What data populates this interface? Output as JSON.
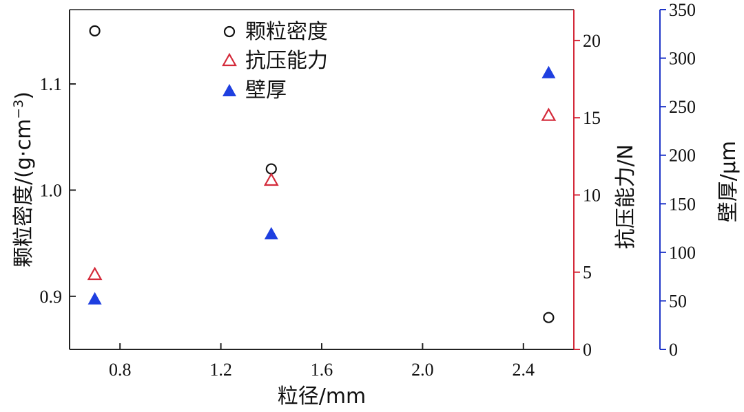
{
  "chart_data": {
    "type": "scatter",
    "xlabel": "粒径/mm",
    "xlim": [
      0.6,
      2.6
    ],
    "x_ticks": [
      0.8,
      1.2,
      1.6,
      2.0,
      2.4
    ],
    "x_tick_labels": [
      "0.8",
      "1.2",
      "1.6",
      "2.0",
      "2.4"
    ],
    "axes": {
      "left": {
        "label_main": "颗粒密度/(g·cm",
        "label_sup": "−3",
        "label_close": ")",
        "ylim": [
          0.85,
          1.17
        ],
        "ticks": [
          0.9,
          1.0,
          1.1
        ],
        "tick_labels": [
          "0.9",
          "1.0",
          "1.1"
        ],
        "color": "#000000"
      },
      "right1": {
        "label": "抗压能力/N",
        "ylim": [
          0,
          22
        ],
        "ticks": [
          0,
          5,
          10,
          15,
          20
        ],
        "tick_labels": [
          "0",
          "5",
          "10",
          "15",
          "20"
        ],
        "color": "#d42a3a"
      },
      "right2": {
        "label": "壁厚/μm",
        "ylim": [
          0,
          350
        ],
        "ticks": [
          0,
          50,
          100,
          150,
          200,
          250,
          300,
          350
        ],
        "tick_labels": [
          "0",
          "50",
          "100",
          "150",
          "200",
          "250",
          "300",
          "350"
        ],
        "color": "#1f35c8"
      }
    },
    "series": [
      {
        "name": "颗粒密度",
        "axis": "left",
        "marker": "circle-open",
        "color": "#111111",
        "x": [
          0.7,
          1.4,
          2.5
        ],
        "y": [
          1.15,
          1.02,
          0.88
        ]
      },
      {
        "name": "抗压能力",
        "axis": "right1",
        "marker": "triangle-open",
        "color": "#d42a3a",
        "x": [
          0.7,
          1.4,
          2.5
        ],
        "y": [
          4.9,
          11.0,
          15.2
        ]
      },
      {
        "name": "壁厚",
        "axis": "right2",
        "marker": "triangle-filled",
        "color": "#1e3fe0",
        "x": [
          0.7,
          1.4,
          2.5
        ],
        "y": [
          52,
          119,
          285
        ]
      }
    ],
    "legend_position": "top-center",
    "grid": false
  }
}
